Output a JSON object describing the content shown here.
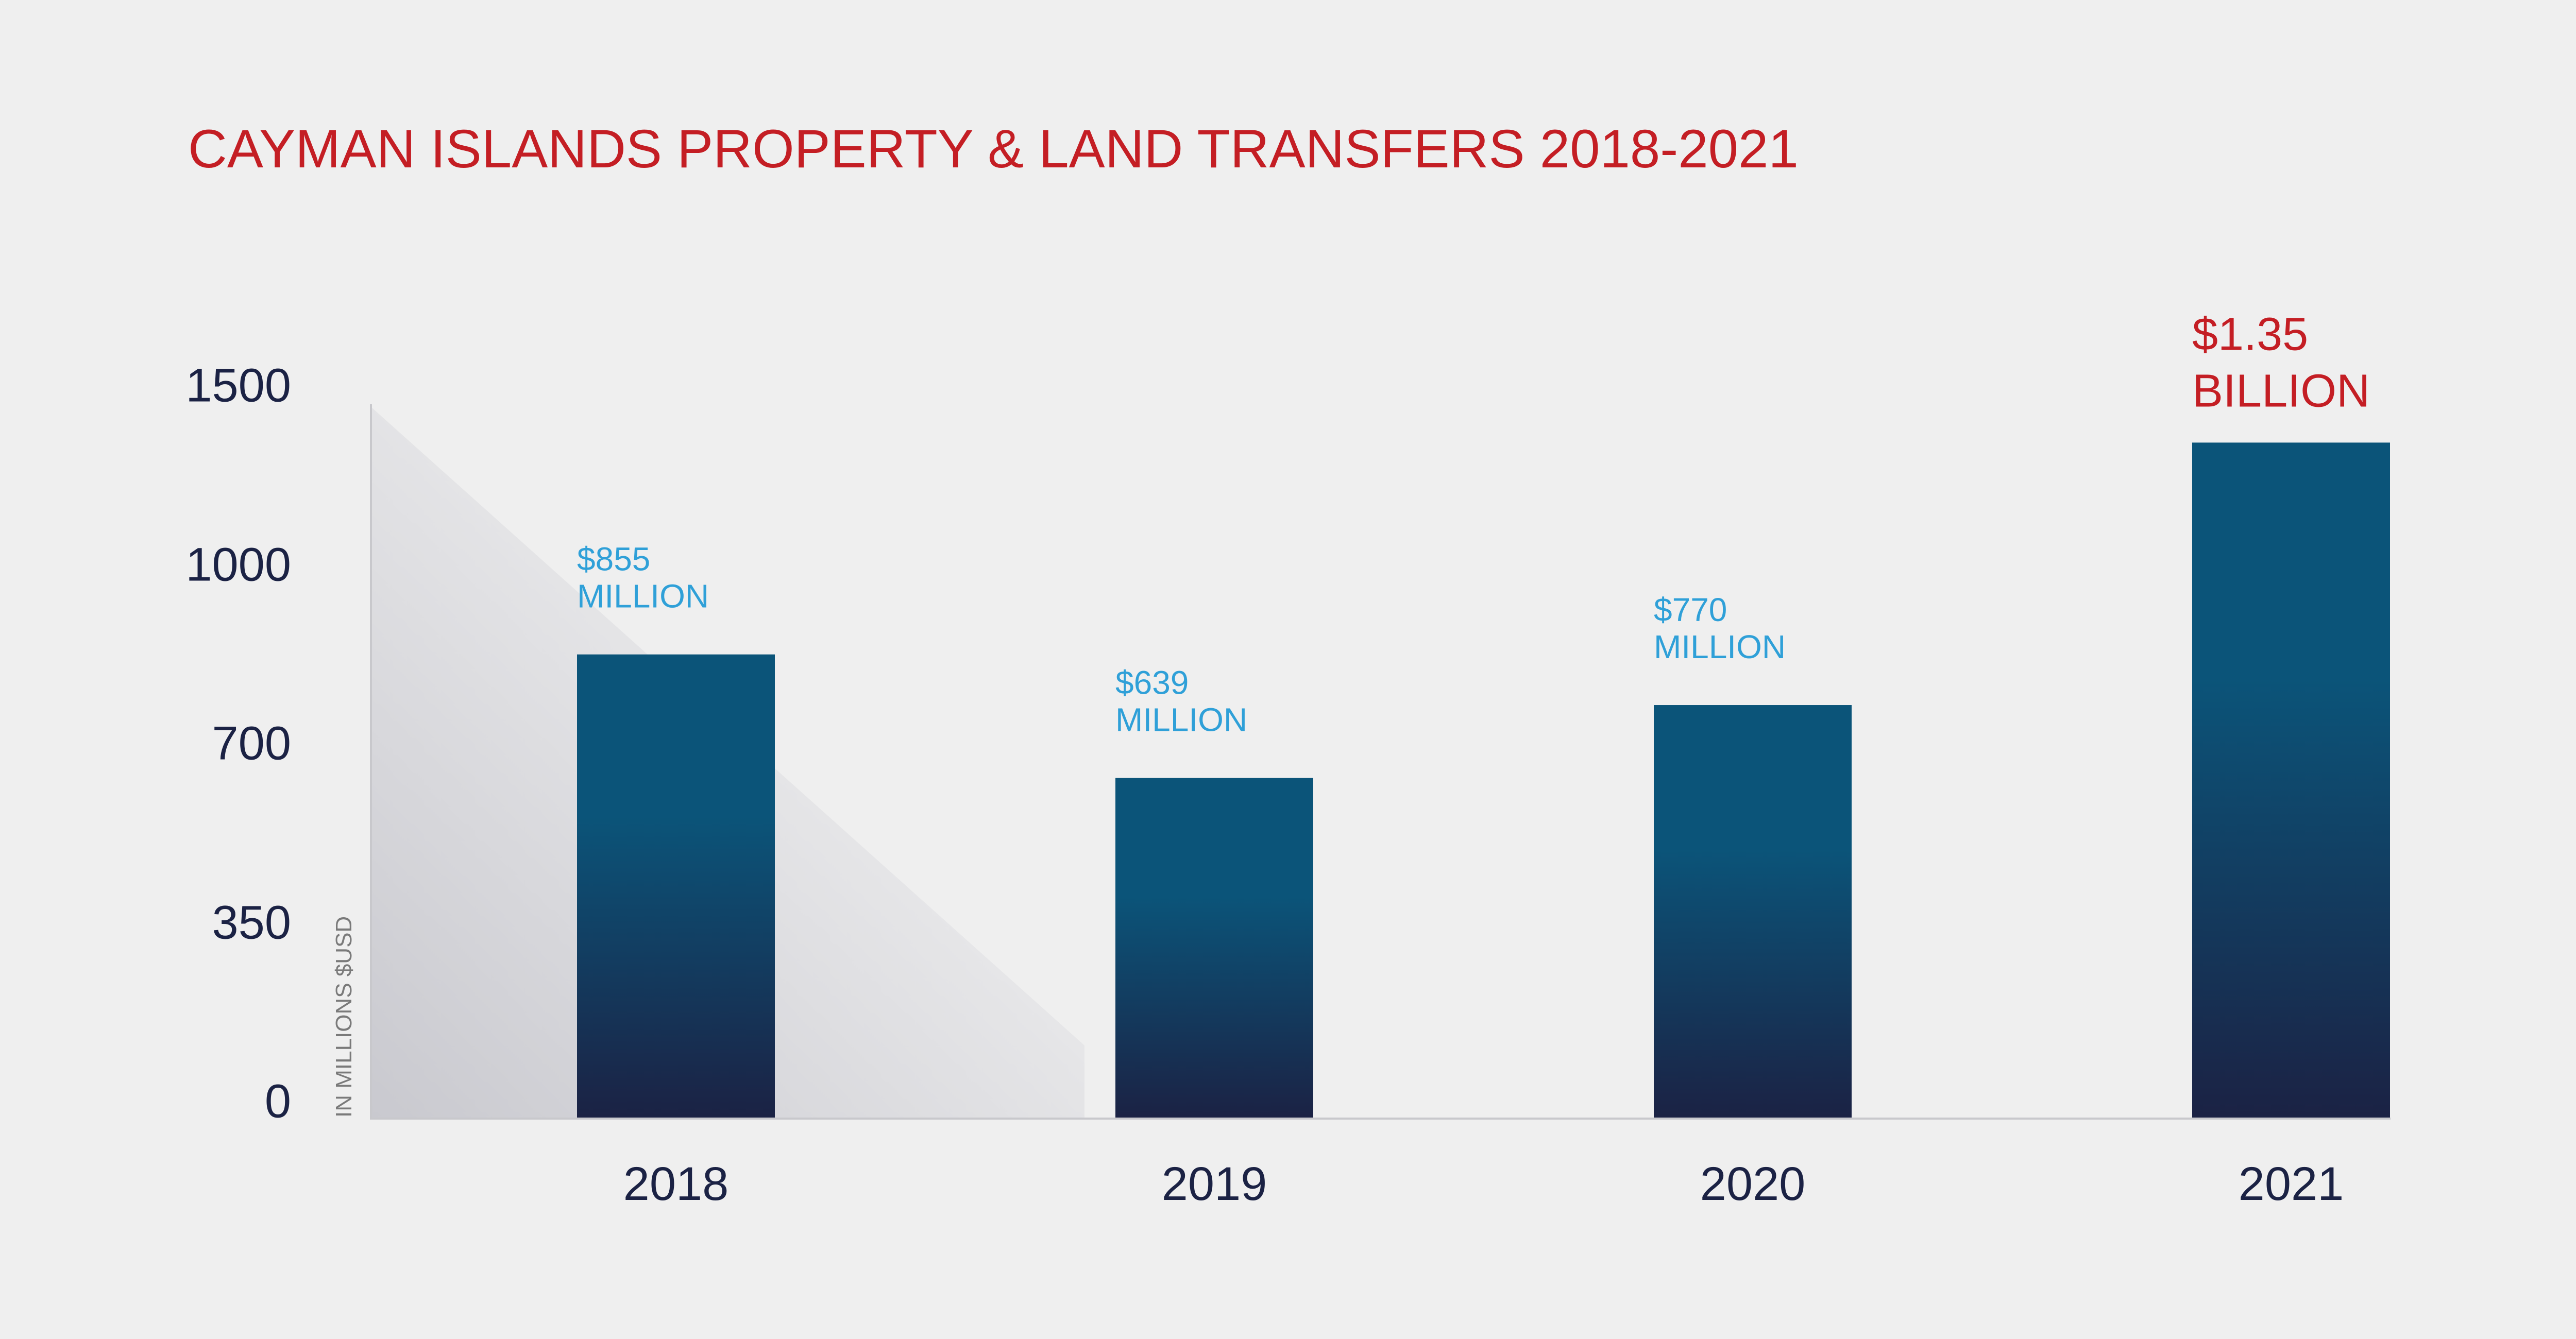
{
  "chart_data": {
    "type": "bar",
    "title": "CAYMAN ISLANDS PROPERTY & LAND TRANSFERS 2018-2021",
    "ylabel": "IN MILLIONS $USD",
    "xlabel": "",
    "categories": [
      "2018",
      "2019",
      "2020",
      "2021"
    ],
    "values": [
      855,
      639,
      770,
      1350
    ],
    "data_labels": [
      [
        "$855",
        "MILLION"
      ],
      [
        "$639",
        "MILLION"
      ],
      [
        "$770",
        "MILLION"
      ],
      [
        "$1.35",
        "BILLION"
      ]
    ],
    "y_ticks": [
      0,
      350,
      700,
      1000,
      1500
    ],
    "ylim": [
      0,
      1500
    ],
    "grid": false,
    "legend": "none"
  },
  "colors": {
    "background": "#efefef",
    "title": "#c41e24",
    "bar_top": "#0b5479",
    "bar_bottom": "#1b2244",
    "label": "#2fa0d8",
    "highlight_label": "#c41e24",
    "tick": "#1b2244",
    "axis_label": "#7a7a7a",
    "axis_line": "#c8c8cc"
  }
}
